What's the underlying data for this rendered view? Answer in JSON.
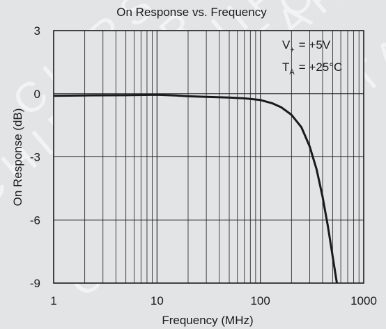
{
  "watermark": "CHIPSTAR",
  "chart_data": {
    "type": "line",
    "title": "On Response vs. Frequency",
    "xlabel": "Frequency (MHz)",
    "ylabel": "On Response (dB)",
    "x_scale": "log",
    "xlim": [
      1,
      1000
    ],
    "ylim": [
      -9,
      3
    ],
    "grid": true,
    "x_ticks": [
      1,
      10,
      100,
      1000
    ],
    "x_tick_labels": [
      "1",
      "10",
      "100",
      "1000"
    ],
    "y_ticks": [
      3,
      0,
      -3,
      -6,
      -9
    ],
    "y_tick_labels": [
      "3",
      "0",
      "-3",
      "-6",
      "-9"
    ],
    "annotations": {
      "supply": {
        "symbol": "V",
        "subscript": "+",
        "value": "=  +5V"
      },
      "temperature": {
        "symbol": "T",
        "subscript": "A",
        "value": "=  +25°C"
      }
    },
    "series": [
      {
        "color": "#1a1a1a",
        "x": [
          1,
          2,
          5,
          10,
          15,
          20,
          30,
          50,
          70,
          100,
          130,
          160,
          200,
          250,
          300,
          350,
          400,
          450,
          500,
          550
        ],
        "y": [
          -0.1,
          -0.08,
          -0.07,
          -0.05,
          -0.08,
          -0.12,
          -0.15,
          -0.18,
          -0.22,
          -0.3,
          -0.45,
          -0.65,
          -1.0,
          -1.6,
          -2.5,
          -3.6,
          -4.9,
          -6.3,
          -7.7,
          -9.0
        ]
      }
    ]
  }
}
